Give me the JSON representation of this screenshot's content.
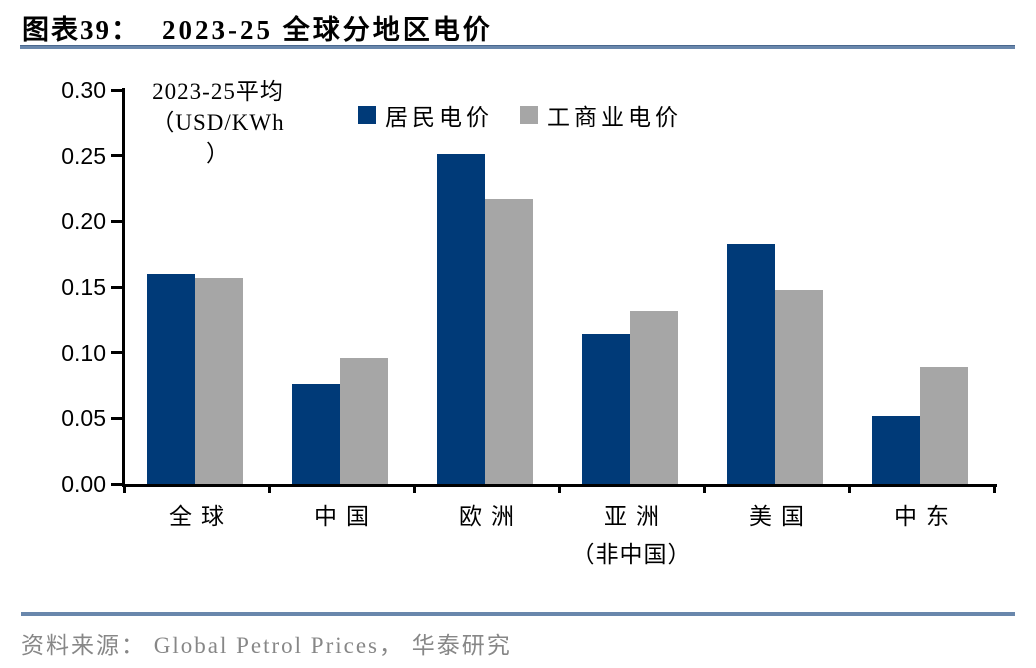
{
  "header": {
    "figure_label": "图表39：",
    "title": "2023-25 全球分地区电价"
  },
  "chart_data": {
    "type": "bar",
    "title": "2023-25 全球分地区电价",
    "unit_note": "2023-25平均（USD/KWh）",
    "unit_note_lines": [
      "2023-25平均",
      "（USD/KWh",
      "）"
    ],
    "categories": [
      "全球",
      "中国",
      "欧洲",
      "亚洲（非中国）",
      "美国",
      "中东"
    ],
    "category_label_lines": [
      [
        "全球"
      ],
      [
        "中国"
      ],
      [
        "欧洲"
      ],
      [
        "亚洲",
        "（非中国）"
      ],
      [
        "美国"
      ],
      [
        "中东"
      ]
    ],
    "series": [
      {
        "name": "居民电价",
        "color": "#003a78",
        "values": [
          0.16,
          0.076,
          0.251,
          0.114,
          0.183,
          0.052
        ]
      },
      {
        "name": "工商业电价",
        "color": "#a6a6a6",
        "values": [
          0.157,
          0.096,
          0.217,
          0.132,
          0.148,
          0.089
        ]
      }
    ],
    "ylim": [
      0,
      0.3
    ],
    "ytick_step": 0.05,
    "yticks": [
      "0.30",
      "0.25",
      "0.20",
      "0.15",
      "0.10",
      "0.05",
      "0.00"
    ],
    "legend_position": "top",
    "grid": false,
    "axis_color": "#000000"
  },
  "footer": {
    "source_text": "资料来源： Global Petrol Prices， 华泰研究"
  }
}
